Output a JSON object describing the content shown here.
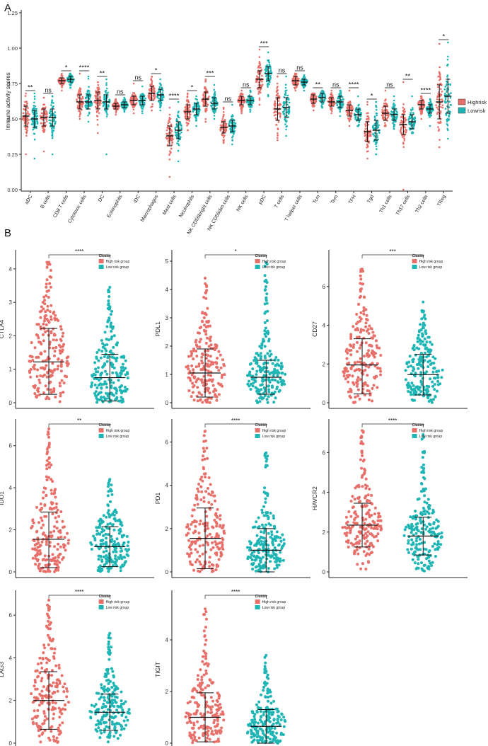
{
  "figure": {
    "panel_a_label": "A",
    "panel_b_label": "B"
  },
  "colors": {
    "high": "#e8706a",
    "low": "#1fb5b5",
    "axis": "#222222",
    "errorbar": "#111111"
  },
  "chart_data": [
    {
      "type": "scatter",
      "id": "immune-activity",
      "title": "",
      "ylabel": "Immune activity scores",
      "xlabel": "",
      "ylim": [
        0,
        1.25
      ],
      "yticks": [
        0.0,
        0.25,
        0.5,
        0.75,
        1.0,
        1.25
      ],
      "ytick_labels": [
        "0.00",
        "0.25",
        "0.50",
        "0.75",
        "1.00",
        "1.25"
      ],
      "legend": {
        "position": "right",
        "entries": [
          "Highrisk",
          "Lowrisk"
        ]
      },
      "categories": [
        "aDC",
        "B cells",
        "CD8 T cells",
        "Cytotoxic cells",
        "DC",
        "Eosinophils",
        "iDC",
        "Macrophages",
        "Mast cells",
        "Neutrophils",
        "NK CD56bright cells",
        "NK CD56dim cells",
        "NK cells",
        "pDC",
        "T cells",
        "T helper cells",
        "Tcm",
        "Tem",
        "TFH",
        "Tgd",
        "Th1 cells",
        "Th17 cells",
        "Th2 cells",
        "TReg"
      ],
      "significance": [
        "**",
        "ns",
        "*",
        "****",
        "**",
        "ns",
        "ns",
        "*",
        "****",
        "*",
        "***",
        "ns",
        "ns",
        "***",
        "ns",
        "ns",
        "**",
        "ns",
        "****",
        "*",
        "ns",
        "**",
        "****",
        "*"
      ],
      "series": [
        {
          "name": "Highrisk",
          "mean": [
            0.52,
            0.51,
            0.77,
            0.62,
            0.63,
            0.59,
            0.63,
            0.68,
            0.38,
            0.55,
            0.64,
            0.44,
            0.63,
            0.78,
            0.57,
            0.77,
            0.64,
            0.62,
            0.56,
            0.41,
            0.54,
            0.46,
            0.6,
            0.62
          ],
          "sd": [
            0.07,
            0.06,
            0.02,
            0.05,
            0.06,
            0.02,
            0.03,
            0.05,
            0.07,
            0.05,
            0.05,
            0.04,
            0.03,
            0.06,
            0.08,
            0.03,
            0.03,
            0.03,
            0.04,
            0.07,
            0.05,
            0.07,
            0.03,
            0.12
          ],
          "min": [
            0.25,
            0.27,
            0.7,
            0.5,
            0.4,
            0.53,
            0.54,
            0.56,
            0.09,
            0.42,
            0.48,
            0.33,
            0.54,
            0.6,
            0.35,
            0.7,
            0.56,
            0.54,
            0.45,
            0.22,
            0.45,
            0.0,
            0.5,
            0.3
          ],
          "max": [
            0.68,
            0.65,
            0.82,
            0.82,
            0.76,
            0.64,
            0.75,
            0.8,
            0.58,
            0.68,
            0.78,
            0.58,
            0.7,
            0.99,
            0.8,
            0.82,
            0.68,
            0.7,
            0.7,
            0.62,
            0.7,
            0.76,
            0.66,
            1.03
          ]
        },
        {
          "name": "Lowrisk",
          "mean": [
            0.5,
            0.51,
            0.78,
            0.62,
            0.62,
            0.6,
            0.63,
            0.67,
            0.42,
            0.57,
            0.61,
            0.45,
            0.63,
            0.82,
            0.58,
            0.76,
            0.65,
            0.62,
            0.53,
            0.42,
            0.53,
            0.48,
            0.57,
            0.66
          ],
          "sd": [
            0.06,
            0.06,
            0.02,
            0.05,
            0.05,
            0.02,
            0.03,
            0.04,
            0.06,
            0.04,
            0.04,
            0.04,
            0.03,
            0.05,
            0.07,
            0.02,
            0.03,
            0.04,
            0.04,
            0.07,
            0.04,
            0.05,
            0.03,
            0.12
          ],
          "min": [
            0.22,
            0.25,
            0.72,
            0.48,
            0.25,
            0.55,
            0.54,
            0.56,
            0.2,
            0.45,
            0.5,
            0.32,
            0.55,
            0.66,
            0.38,
            0.7,
            0.58,
            0.52,
            0.45,
            0.25,
            0.43,
            0.4,
            0.45,
            0.36
          ],
          "max": [
            0.68,
            0.66,
            0.82,
            0.8,
            0.78,
            0.65,
            0.73,
            0.78,
            0.62,
            0.66,
            0.74,
            0.6,
            0.7,
            0.97,
            0.8,
            0.81,
            0.7,
            0.7,
            0.66,
            0.62,
            0.66,
            0.66,
            0.64,
            1.04
          ]
        }
      ]
    },
    {
      "type": "scatter",
      "id": "ctla4",
      "ylabel": "CTLA4",
      "ylim": [
        0,
        4.4
      ],
      "yticks": [
        0,
        1,
        2,
        3,
        4
      ],
      "significance": "****",
      "legend_title": "Cluster",
      "legend_entries": [
        "High risk group",
        "Low risk group"
      ],
      "series": [
        {
          "name": "High risk group",
          "mean": 1.22,
          "lower": 0.25,
          "upper": 2.22,
          "max": 4.2
        },
        {
          "name": "Low risk group",
          "mean": 0.75,
          "lower": 0.05,
          "upper": 1.45,
          "max": 3.45
        }
      ]
    },
    {
      "type": "scatter",
      "id": "pdl1",
      "ylabel": "PDL1",
      "ylim": [
        0,
        5.2
      ],
      "yticks": [
        0,
        1,
        2,
        3,
        4,
        5
      ],
      "significance": "*",
      "legend_title": "Cluster",
      "legend_entries": [
        "High risk group",
        "Low risk group"
      ],
      "series": [
        {
          "name": "High risk group",
          "mean": 1.05,
          "lower": 0.2,
          "upper": 1.9,
          "max": 4.4
        },
        {
          "name": "Low risk group",
          "mean": 0.9,
          "lower": 0.3,
          "upper": 1.5,
          "max": 4.95
        }
      ]
    },
    {
      "type": "scatter",
      "id": "cd27",
      "ylabel": "CD27",
      "ylim": [
        0,
        7.6
      ],
      "yticks": [
        0,
        2,
        4,
        6
      ],
      "significance": "***",
      "legend_title": "Cluster",
      "legend_entries": [
        "High risk group",
        "Low risk group"
      ],
      "series": [
        {
          "name": "High risk group",
          "mean": 1.95,
          "lower": 0.45,
          "upper": 3.3,
          "max": 6.9
        },
        {
          "name": "Low risk group",
          "mean": 1.45,
          "lower": 0.4,
          "upper": 2.5,
          "max": 5.2
        }
      ]
    },
    {
      "type": "scatter",
      "id": "ido1",
      "ylabel": "IDO1",
      "ylim": [
        0,
        7.0
      ],
      "yticks": [
        0,
        2,
        4,
        6
      ],
      "significance": "**",
      "legend_title": "Cluster",
      "legend_entries": [
        "High risk group",
        "Low risk group"
      ],
      "series": [
        {
          "name": "High risk group",
          "mean": 1.55,
          "lower": 0.2,
          "upper": 2.85,
          "max": 6.8
        },
        {
          "name": "Low risk group",
          "mean": 1.2,
          "lower": 0.25,
          "upper": 2.15,
          "max": 4.4
        }
      ]
    },
    {
      "type": "scatter",
      "id": "pd1",
      "ylabel": "PD1",
      "ylim": [
        0,
        6.8
      ],
      "yticks": [
        0,
        2,
        4,
        6
      ],
      "significance": "****",
      "legend_title": "Cluster",
      "legend_entries": [
        "High risk group",
        "Low risk group"
      ],
      "series": [
        {
          "name": "High risk group",
          "mean": 1.55,
          "lower": 0.15,
          "upper": 2.95,
          "max": 6.5
        },
        {
          "name": "Low risk group",
          "mean": 1.0,
          "lower": 0.0,
          "upper": 2.0,
          "max": 5.5
        }
      ]
    },
    {
      "type": "scatter",
      "id": "havcr2",
      "ylabel": "HAVCR2",
      "ylim": [
        0,
        7.4
      ],
      "yticks": [
        0,
        2,
        4,
        6
      ],
      "significance": "****",
      "legend_title": "Cluster",
      "legend_entries": [
        "High risk group",
        "Low risk group"
      ],
      "series": [
        {
          "name": "High risk group",
          "mean": 2.35,
          "lower": 1.25,
          "upper": 3.45,
          "max": 7.1
        },
        {
          "name": "Low risk group",
          "mean": 1.8,
          "lower": 0.85,
          "upper": 2.75,
          "max": 6.9
        }
      ]
    },
    {
      "type": "scatter",
      "id": "lag3",
      "ylabel": "LAG3",
      "ylim": [
        0,
        6.9
      ],
      "yticks": [
        0,
        2,
        4,
        6
      ],
      "significance": "****",
      "legend_title": "Cluster",
      "legend_entries": [
        "High risk group",
        "Low risk group"
      ],
      "series": [
        {
          "name": "High risk group",
          "mean": 2.0,
          "lower": 0.65,
          "upper": 3.35,
          "max": 6.7
        },
        {
          "name": "Low risk group",
          "mean": 1.45,
          "lower": 0.6,
          "upper": 2.3,
          "max": 5.15
        }
      ]
    },
    {
      "type": "scatter",
      "id": "tigit",
      "ylabel": "TIGIT",
      "ylim": [
        0,
        5.7
      ],
      "yticks": [
        0,
        2,
        4
      ],
      "significance": "****",
      "legend_title": "Cluster",
      "legend_entries": [
        "High risk group",
        "Low risk group"
      ],
      "series": [
        {
          "name": "High risk group",
          "mean": 1.0,
          "lower": 0.05,
          "upper": 1.95,
          "max": 5.2
        },
        {
          "name": "Low risk group",
          "mean": 0.65,
          "lower": 0.0,
          "upper": 1.3,
          "max": 3.4
        }
      ]
    }
  ]
}
